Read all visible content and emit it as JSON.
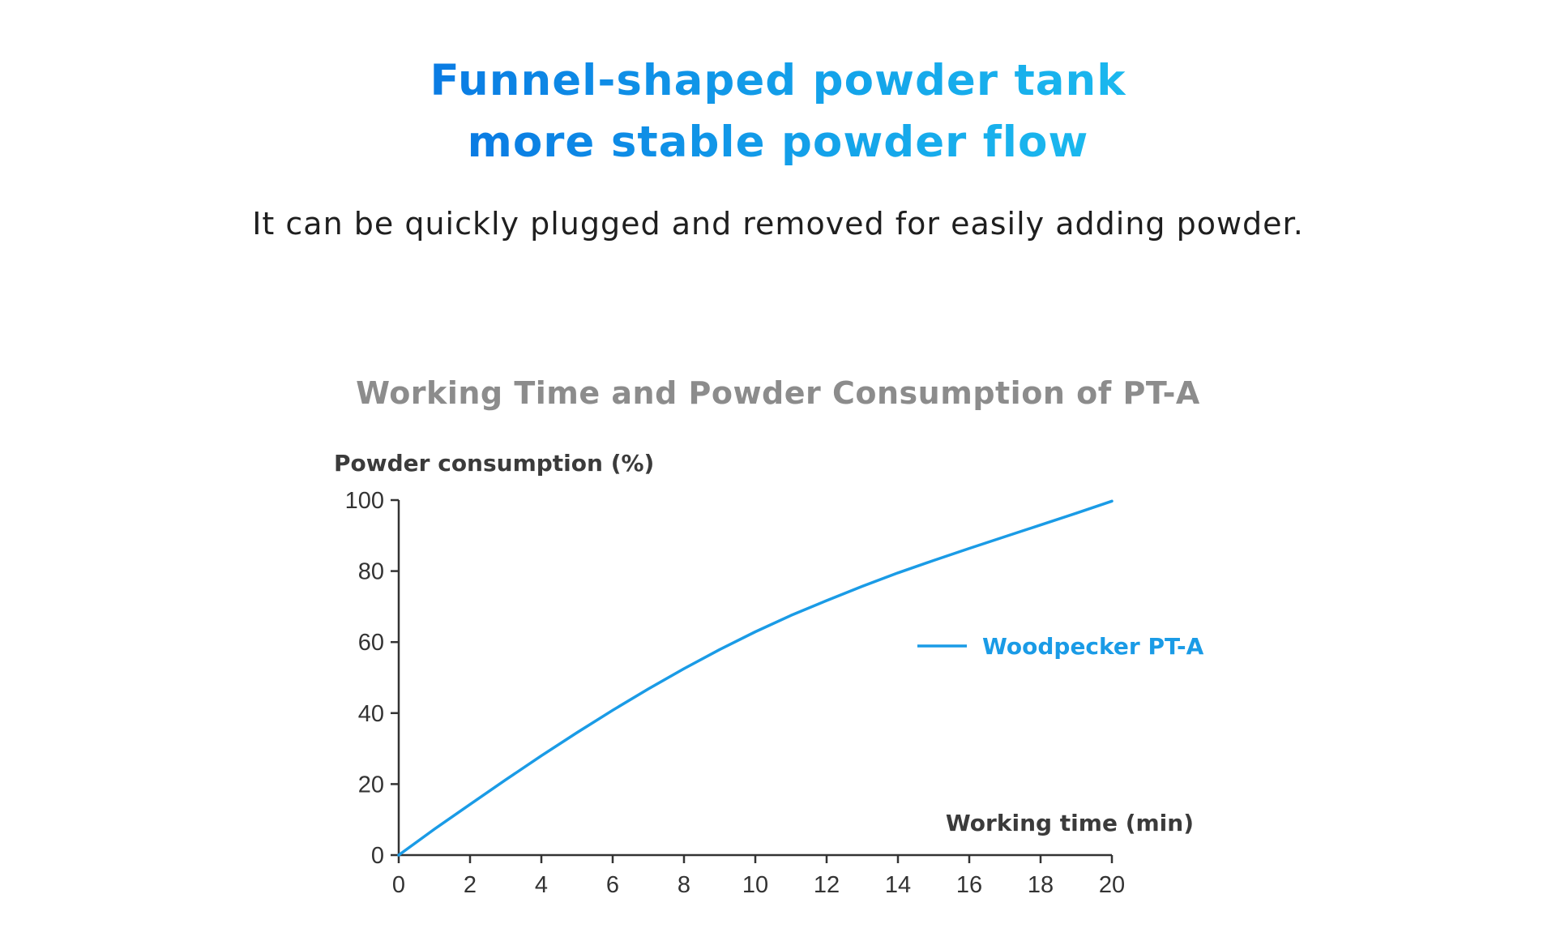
{
  "header": {
    "title_line_1": "Funnel-shaped powder tank",
    "title_line_2": "more stable powder flow",
    "subtitle": "It can be quickly plugged and removed for easily adding powder."
  },
  "colors": {
    "title_accent": "#1492e6",
    "series_line": "#1a9be6",
    "axis": "#333333",
    "chart_title": "#8c8c8c",
    "subtitle": "#1f1f1f"
  },
  "chart_data": {
    "type": "line",
    "title": "Working Time and Powder Consumption of PT-A",
    "xlabel": "Working time (min)",
    "ylabel": "Powder consumption (%)",
    "xlim": [
      0,
      20
    ],
    "ylim": [
      0,
      100
    ],
    "x_ticks": [
      0,
      2,
      4,
      6,
      8,
      10,
      12,
      14,
      16,
      18,
      20
    ],
    "y_ticks": [
      0,
      20,
      40,
      60,
      80,
      100
    ],
    "grid": false,
    "legend_position": "center-right",
    "series": [
      {
        "name": "Woodpecker PT-A",
        "x": [
          0,
          1,
          2,
          3,
          4,
          5,
          6,
          7,
          8,
          9,
          10,
          11,
          12,
          13,
          14,
          15,
          16,
          17,
          18,
          19,
          20
        ],
        "y": [
          0,
          7.3,
          14.3,
          21.2,
          28,
          34.5,
          40.8,
          46.8,
          52.5,
          57.9,
          62.9,
          67.5,
          71.7,
          75.7,
          79.5,
          83,
          86.4,
          89.7,
          93,
          96.3,
          99.7
        ]
      }
    ]
  }
}
